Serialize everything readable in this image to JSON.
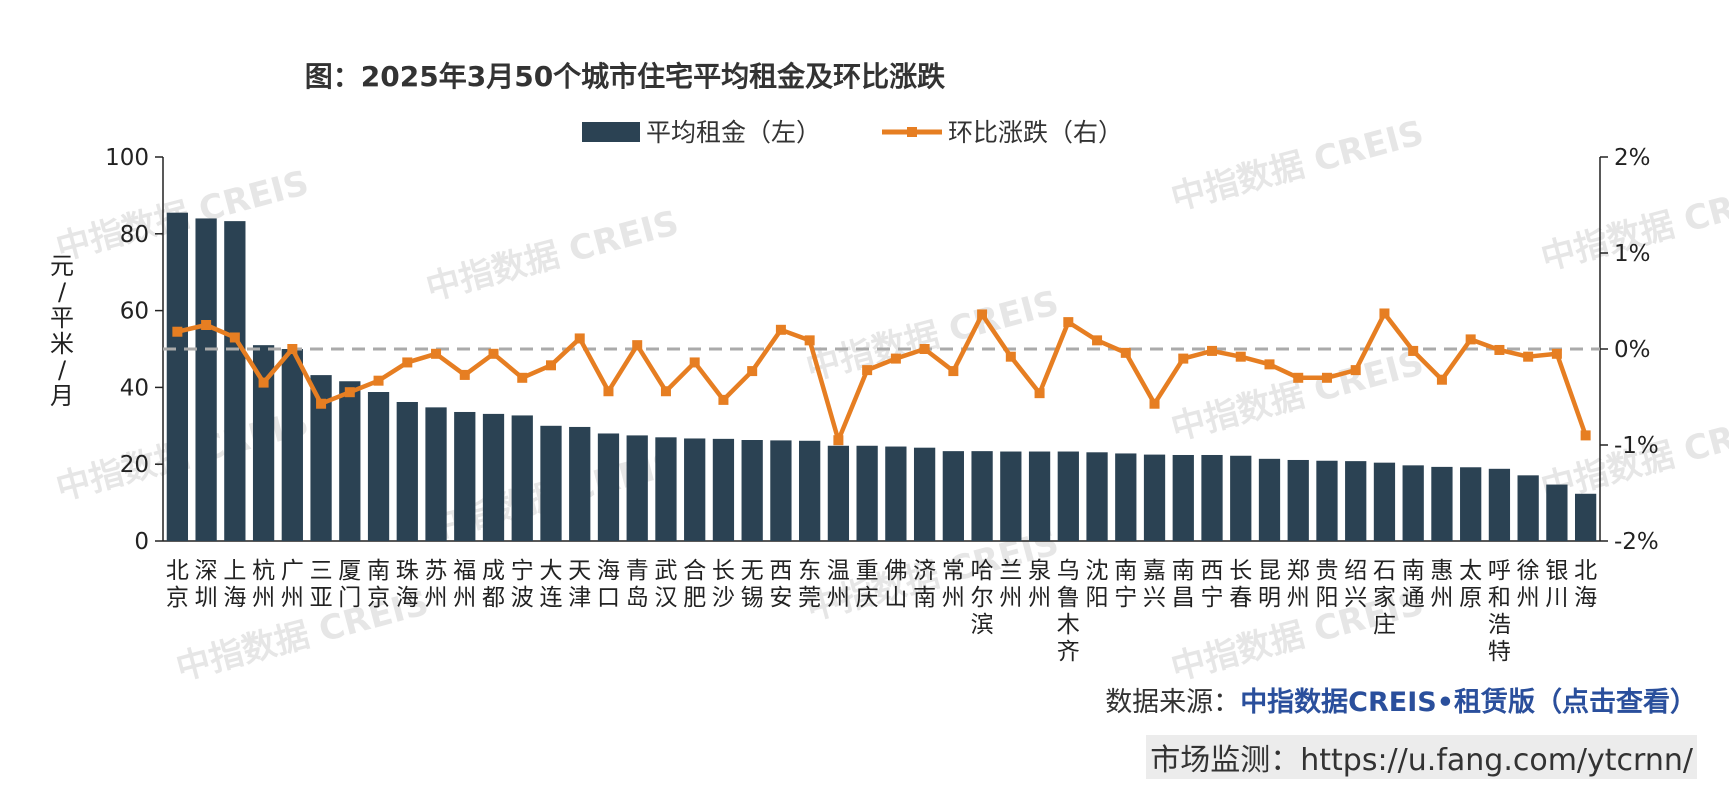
{
  "chart_data": {
    "type": "bar",
    "title": "图：2025年3月50个城市住宅平均租金及环比涨跌",
    "ylabel": "元/平米/月",
    "ylim": [
      0,
      100
    ],
    "yticks": [
      0,
      20,
      40,
      60,
      80,
      100
    ],
    "y2lim": [
      -2,
      2
    ],
    "y2ticks": [
      "-2%",
      "-1%",
      "0%",
      "1%",
      "2%"
    ],
    "legend": [
      "平均租金（左）",
      "环比涨跌（右）"
    ],
    "categories": [
      "北京",
      "深圳",
      "上海",
      "杭州",
      "广州",
      "三亚",
      "厦门",
      "南京",
      "珠海",
      "苏州",
      "福州",
      "成都",
      "宁波",
      "大连",
      "天津",
      "海口",
      "青岛",
      "武汉",
      "合肥",
      "长沙",
      "无锡",
      "西安",
      "东莞",
      "温州",
      "重庆",
      "佛山",
      "济南",
      "常州",
      "哈尔滨",
      "兰州",
      "泉州",
      "乌鲁木齐",
      "沈阳",
      "南宁",
      "嘉兴",
      "南昌",
      "西宁",
      "长春",
      "昆明",
      "郑州",
      "贵阳",
      "绍兴",
      "石家庄",
      "南通",
      "惠州",
      "太原",
      "呼和浩特",
      "徐州",
      "银川",
      "北海"
    ],
    "series": [
      {
        "name": "平均租金（左）",
        "type": "bar",
        "color": "#2b4253",
        "values": [
          85.5,
          84,
          83.3,
          51,
          50,
          43.2,
          41.6,
          38.8,
          36.2,
          34.8,
          33.6,
          33.1,
          32.7,
          30,
          29.7,
          28,
          27.5,
          27,
          26.7,
          26.6,
          26.3,
          26.2,
          26.1,
          24.8,
          24.8,
          24.6,
          24.3,
          23.4,
          23.4,
          23.3,
          23.3,
          23.3,
          23.1,
          22.8,
          22.5,
          22.4,
          22.4,
          22.2,
          21.4,
          21.1,
          20.9,
          20.8,
          20.4,
          19.7,
          19.3,
          19.2,
          18.8,
          17.1,
          14.7,
          12.3
        ]
      },
      {
        "name": "环比涨跌（右）",
        "type": "line",
        "color": "#e67e22",
        "values": [
          0.18,
          0.25,
          0.12,
          -0.35,
          0.0,
          -0.57,
          -0.45,
          -0.33,
          -0.14,
          -0.05,
          -0.27,
          -0.05,
          -0.3,
          -0.17,
          0.11,
          -0.44,
          0.04,
          -0.44,
          -0.14,
          -0.53,
          -0.23,
          0.2,
          0.09,
          -0.95,
          -0.22,
          -0.1,
          0.0,
          -0.23,
          0.36,
          -0.08,
          -0.46,
          0.28,
          0.09,
          -0.04,
          -0.57,
          -0.1,
          -0.02,
          -0.08,
          -0.16,
          -0.3,
          -0.3,
          -0.22,
          0.37,
          -0.02,
          -0.32,
          0.1,
          -0.01,
          -0.08,
          -0.05,
          -0.9
        ]
      }
    ]
  },
  "watermark": "中指数据 CREIS",
  "colors": {
    "bar": "#2b4253",
    "line": "#e67e22",
    "zero_line": "#aaaaaa",
    "link": "#2a4f9c"
  },
  "source": {
    "prefix": "数据来源：",
    "link": "中指数据CREIS•租赁版（点击查看）"
  },
  "monitor": "市场监测：https://u.fang.com/ytcrnn/"
}
